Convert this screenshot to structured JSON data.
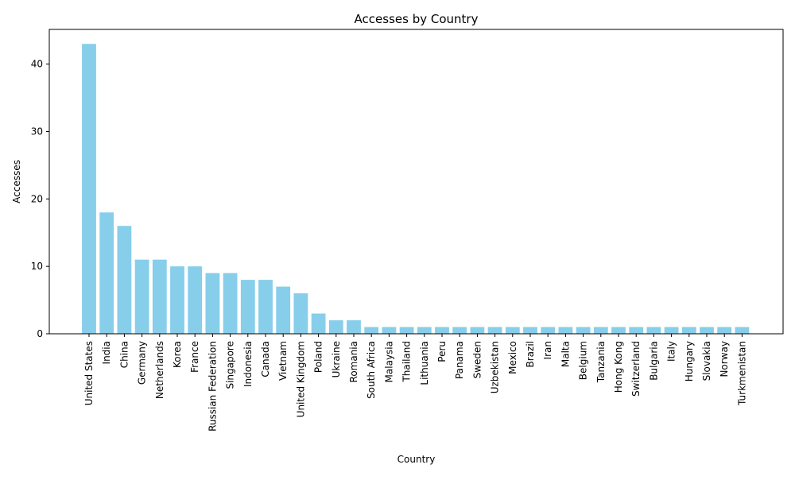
{
  "chart_data": {
    "type": "bar",
    "title": "Accesses by Country",
    "xlabel": "Country",
    "ylabel": "Accesses",
    "ylim": [
      0,
      45.15
    ],
    "yticks": [
      0,
      10,
      20,
      30,
      40
    ],
    "grid": false,
    "bar_color": "#87ceeb",
    "categories": [
      "United States",
      "India",
      "China",
      "Germany",
      "Netherlands",
      "Korea",
      "France",
      "Russian Federation",
      "Singapore",
      "Indonesia",
      "Canada",
      "Vietnam",
      "United Kingdom",
      "Poland",
      "Ukraine",
      "Romania",
      "South Africa",
      "Malaysia",
      "Thailand",
      "Lithuania",
      "Peru",
      "Panama",
      "Sweden",
      "Uzbekistan",
      "Mexico",
      "Brazil",
      "Iran",
      "Malta",
      "Belgium",
      "Tanzania",
      "Hong Kong",
      "Switzerland",
      "Bulgaria",
      "Italy",
      "Hungary",
      "Slovakia",
      "Norway",
      "Turkmenistan"
    ],
    "values": [
      43,
      18,
      16,
      11,
      11,
      10,
      10,
      9,
      9,
      8,
      8,
      7,
      6,
      3,
      2,
      2,
      1,
      1,
      1,
      1,
      1,
      1,
      1,
      1,
      1,
      1,
      1,
      1,
      1,
      1,
      1,
      1,
      1,
      1,
      1,
      1,
      1,
      1
    ]
  }
}
